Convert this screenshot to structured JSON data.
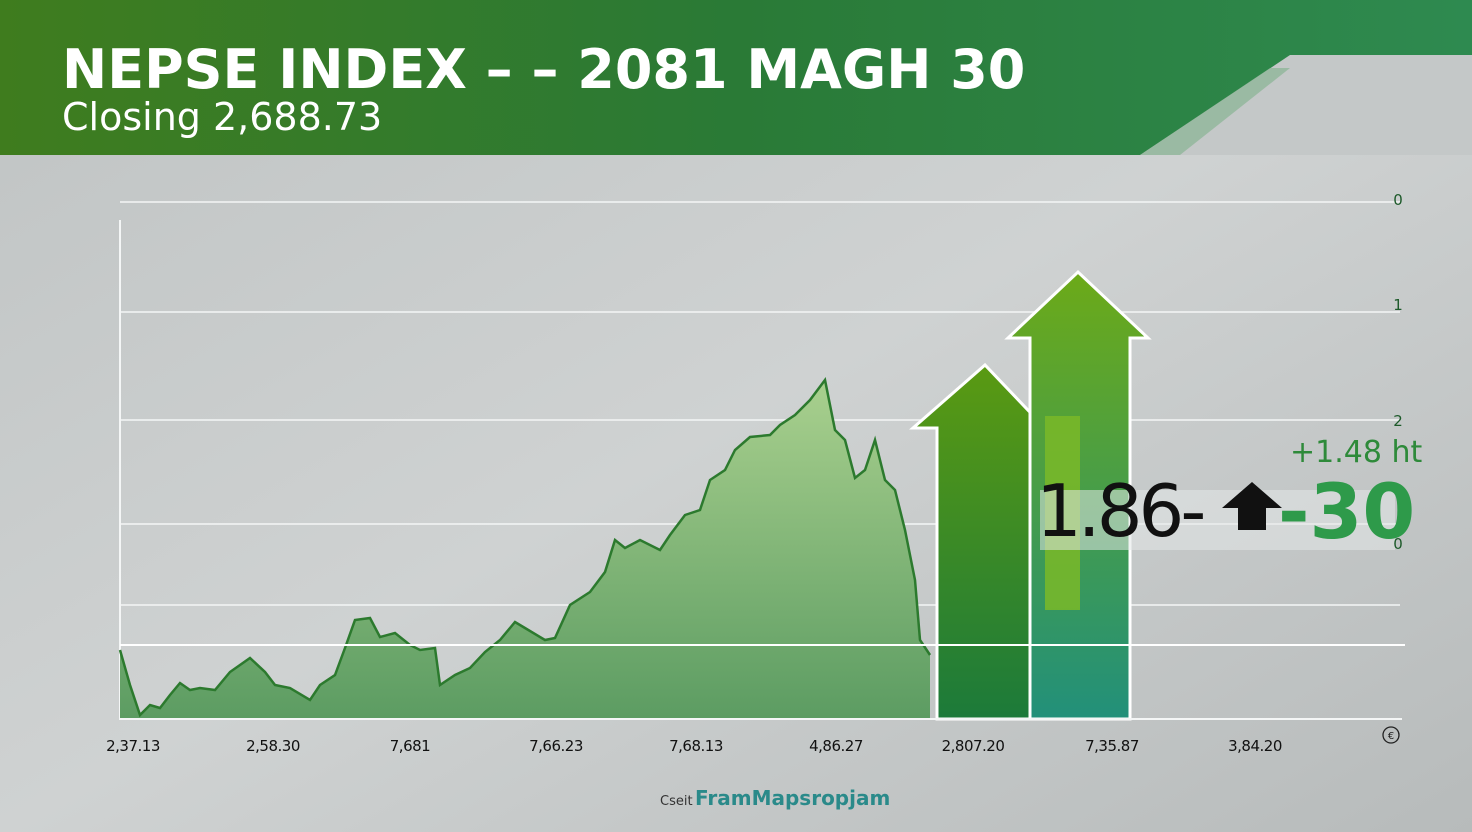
{
  "header": {
    "title": "NEPSE INDEX – – 2081 MAGH 30",
    "subtitle": "Closing 2,688.73"
  },
  "chart": {
    "x_labels": [
      "2,37.13",
      "2,58.30",
      "7,681",
      "7,66.23",
      "7,68.13",
      "4,86.27",
      "2,807.20",
      "7,35.87",
      "3,84.20"
    ],
    "right_labels": [
      "0",
      "1",
      "2",
      "0"
    ]
  },
  "callouts": {
    "change": "+1.48 ht",
    "value": "1.86-",
    "points": "-30"
  },
  "footer": {
    "prefix": "Cseit",
    "source": "FramMapsropjam"
  }
}
